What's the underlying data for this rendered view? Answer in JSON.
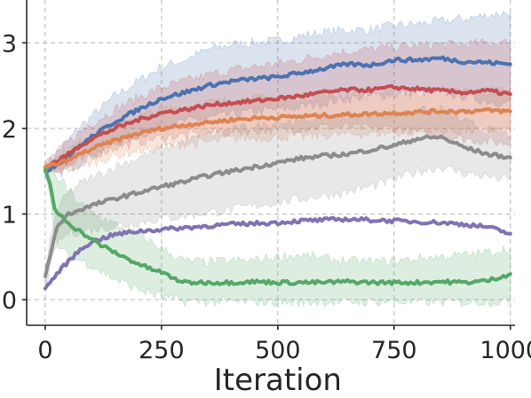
{
  "chart_data": {
    "type": "line",
    "title": "",
    "xlabel": "Iteration",
    "ylabel": "",
    "xlim": [
      -40,
      1010
    ],
    "ylim": [
      -0.3,
      3.5
    ],
    "xticks": [
      0,
      250,
      500,
      750,
      1000
    ],
    "xtick_labels": [
      "0",
      "250",
      "500",
      "750",
      "1000"
    ],
    "yticks": [
      0,
      1,
      2,
      3
    ],
    "ytick_labels": [
      "0",
      "1",
      "2",
      "3"
    ],
    "grid": true,
    "legend": "none",
    "series": [
      {
        "color": "#4c72b0",
        "x": [
          0,
          25,
          50,
          75,
          100,
          150,
          200,
          250,
          300,
          350,
          400,
          450,
          500,
          550,
          600,
          650,
          700,
          750,
          800,
          850,
          900,
          950,
          1000
        ],
        "y": [
          1.5,
          1.58,
          1.68,
          1.8,
          1.9,
          2.08,
          2.22,
          2.35,
          2.42,
          2.5,
          2.55,
          2.58,
          2.6,
          2.65,
          2.7,
          2.75,
          2.74,
          2.8,
          2.8,
          2.82,
          2.78,
          2.77,
          2.75
        ],
        "upper": [
          1.56,
          1.72,
          1.86,
          2.02,
          2.14,
          2.38,
          2.55,
          2.72,
          2.8,
          2.92,
          2.98,
          3.0,
          3.02,
          3.08,
          3.12,
          3.15,
          3.15,
          3.2,
          3.22,
          3.25,
          3.28,
          3.32,
          3.36
        ],
        "lower": [
          1.44,
          1.46,
          1.52,
          1.6,
          1.68,
          1.82,
          1.92,
          2.02,
          2.08,
          2.12,
          2.16,
          2.2,
          2.22,
          2.25,
          2.3,
          2.35,
          2.38,
          2.4,
          2.42,
          2.42,
          2.38,
          2.32,
          2.3
        ]
      },
      {
        "color": "#c44e52",
        "x": [
          0,
          25,
          50,
          75,
          100,
          150,
          200,
          250,
          300,
          350,
          400,
          450,
          500,
          550,
          600,
          650,
          700,
          750,
          800,
          850,
          900,
          950,
          1000
        ],
        "y": [
          1.55,
          1.62,
          1.7,
          1.8,
          1.88,
          2.0,
          2.1,
          2.18,
          2.22,
          2.27,
          2.3,
          2.32,
          2.35,
          2.38,
          2.42,
          2.45,
          2.45,
          2.48,
          2.46,
          2.44,
          2.42,
          2.44,
          2.4
        ],
        "upper": [
          1.6,
          1.72,
          1.84,
          1.96,
          2.06,
          2.22,
          2.36,
          2.48,
          2.55,
          2.62,
          2.68,
          2.72,
          2.76,
          2.8,
          2.86,
          2.9,
          2.92,
          2.95,
          2.96,
          2.98,
          2.98,
          3.0,
          3.0
        ],
        "lower": [
          1.5,
          1.52,
          1.56,
          1.62,
          1.68,
          1.78,
          1.84,
          1.9,
          1.92,
          1.95,
          1.96,
          1.98,
          1.98,
          2.0,
          2.02,
          2.02,
          2.0,
          2.0,
          1.96,
          1.92,
          1.88,
          1.85,
          1.82
        ]
      },
      {
        "color": "#dd8452",
        "x": [
          0,
          25,
          50,
          75,
          100,
          150,
          200,
          250,
          300,
          350,
          400,
          450,
          500,
          550,
          600,
          650,
          700,
          750,
          800,
          850,
          900,
          950,
          1000
        ],
        "y": [
          1.55,
          1.58,
          1.63,
          1.7,
          1.76,
          1.86,
          1.94,
          2.0,
          2.04,
          2.07,
          2.1,
          2.12,
          2.13,
          2.14,
          2.15,
          2.16,
          2.17,
          2.18,
          2.19,
          2.2,
          2.2,
          2.21,
          2.2
        ],
        "upper": [
          1.6,
          1.66,
          1.74,
          1.84,
          1.92,
          2.04,
          2.14,
          2.22,
          2.26,
          2.3,
          2.32,
          2.35,
          2.36,
          2.37,
          2.38,
          2.39,
          2.4,
          2.41,
          2.42,
          2.43,
          2.43,
          2.44,
          2.43
        ],
        "lower": [
          1.5,
          1.5,
          1.52,
          1.56,
          1.6,
          1.68,
          1.74,
          1.78,
          1.82,
          1.84,
          1.88,
          1.89,
          1.9,
          1.91,
          1.92,
          1.93,
          1.94,
          1.95,
          1.96,
          1.97,
          1.97,
          1.98,
          1.97
        ]
      },
      {
        "color": "#8c8c8c",
        "x": [
          0,
          25,
          50,
          75,
          100,
          150,
          200,
          250,
          300,
          350,
          400,
          450,
          500,
          550,
          600,
          650,
          700,
          750,
          800,
          850,
          900,
          950,
          1000
        ],
        "y": [
          0.27,
          0.85,
          1.0,
          1.05,
          1.1,
          1.18,
          1.25,
          1.32,
          1.38,
          1.45,
          1.5,
          1.55,
          1.6,
          1.65,
          1.68,
          1.7,
          1.75,
          1.8,
          1.88,
          1.9,
          1.78,
          1.7,
          1.66
        ],
        "upper": [
          0.4,
          1.05,
          1.25,
          1.35,
          1.42,
          1.55,
          1.66,
          1.76,
          1.85,
          1.92,
          1.98,
          2.02,
          2.06,
          2.1,
          2.12,
          2.14,
          2.16,
          2.18,
          2.2,
          2.22,
          2.08,
          1.98,
          1.92
        ],
        "lower": [
          0.14,
          0.65,
          0.78,
          0.8,
          0.82,
          0.86,
          0.9,
          0.95,
          0.98,
          1.02,
          1.05,
          1.1,
          1.14,
          1.18,
          1.22,
          1.26,
          1.32,
          1.4,
          1.5,
          1.55,
          1.48,
          1.44,
          1.4
        ]
      },
      {
        "color": "#8172b3",
        "x": [
          0,
          25,
          50,
          75,
          100,
          150,
          200,
          250,
          300,
          350,
          400,
          450,
          500,
          550,
          600,
          650,
          700,
          750,
          800,
          850,
          900,
          950,
          1000
        ],
        "y": [
          0.13,
          0.3,
          0.45,
          0.58,
          0.68,
          0.76,
          0.8,
          0.82,
          0.84,
          0.86,
          0.88,
          0.89,
          0.9,
          0.92,
          0.93,
          0.94,
          0.93,
          0.92,
          0.91,
          0.9,
          0.88,
          0.85,
          0.77
        ],
        "upper": null,
        "lower": null
      },
      {
        "color": "#55a868",
        "x": [
          0,
          10,
          20,
          40,
          60,
          80,
          100,
          125,
          150,
          175,
          200,
          225,
          250,
          275,
          300,
          350,
          400,
          450,
          500,
          550,
          600,
          650,
          700,
          750,
          800,
          850,
          900,
          950,
          1000
        ],
        "y": [
          1.52,
          1.35,
          1.05,
          0.95,
          0.85,
          0.78,
          0.7,
          0.62,
          0.55,
          0.48,
          0.42,
          0.36,
          0.32,
          0.25,
          0.2,
          0.2,
          0.2,
          0.21,
          0.2,
          0.2,
          0.2,
          0.21,
          0.2,
          0.2,
          0.2,
          0.21,
          0.2,
          0.22,
          0.3
        ],
        "upper": [
          1.55,
          1.5,
          1.45,
          1.35,
          1.2,
          1.1,
          1.02,
          0.95,
          0.88,
          0.82,
          0.75,
          0.68,
          0.6,
          0.52,
          0.45,
          0.44,
          0.45,
          0.46,
          0.5,
          0.52,
          0.48,
          0.45,
          0.44,
          0.45,
          0.48,
          0.5,
          0.52,
          0.55,
          0.6
        ],
        "lower": [
          1.49,
          1.2,
          0.7,
          0.55,
          0.48,
          0.45,
          0.4,
          0.32,
          0.24,
          0.18,
          0.12,
          0.08,
          0.04,
          0.0,
          -0.02,
          -0.02,
          -0.03,
          -0.02,
          -0.03,
          -0.03,
          -0.02,
          -0.03,
          -0.02,
          -0.02,
          -0.03,
          -0.02,
          -0.03,
          -0.02,
          -0.03
        ]
      }
    ]
  }
}
